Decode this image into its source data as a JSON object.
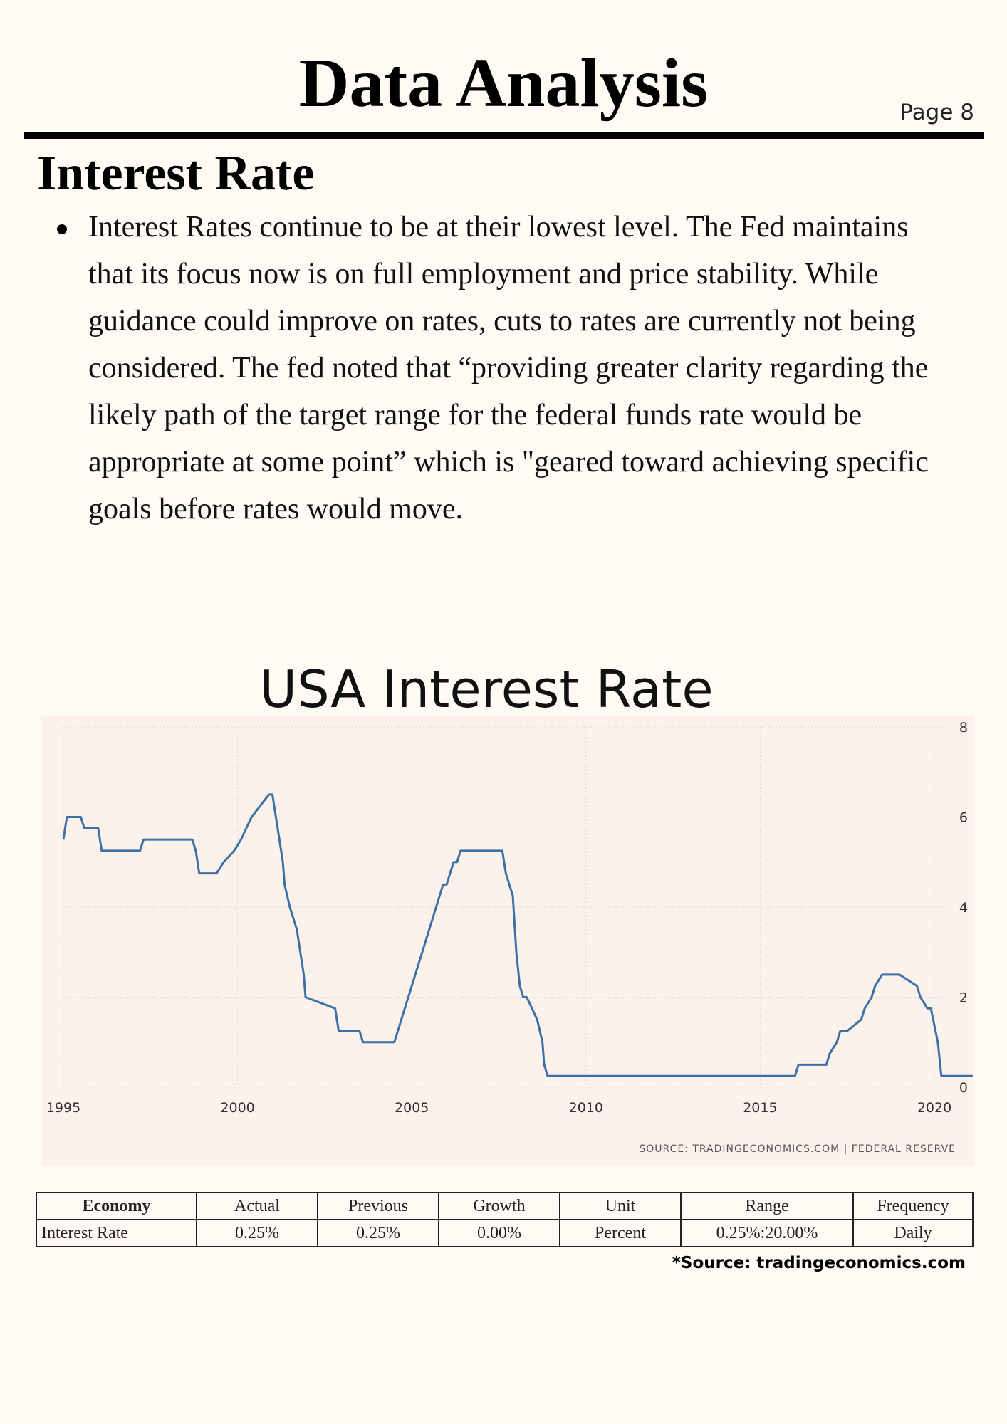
{
  "header": {
    "title": "Data Analysis",
    "page_label": "Page 8"
  },
  "section": {
    "title": "Interest Rate",
    "bullets": [
      "Interest Rates continue to be at their lowest level. The Fed maintains that its focus now is on full employment and price stability. While guidance could improve on rates, cuts to rates are currently not being considered. The fed noted that “providing greater clarity regarding the likely path of the target range for the federal funds rate would be appropriate at some point” which is \"geared toward achieving specific goals before rates would move."
    ]
  },
  "chart": {
    "heading": "USA Interest Rate",
    "source_note": "SOURCE: TRADINGECONOMICS.COM | FEDERAL RESERVE"
  },
  "chart_data": {
    "type": "line",
    "title": "USA Interest Rate",
    "xlabel": "",
    "ylabel": "",
    "x_ticks": [
      "1995",
      "2000",
      "2005",
      "2010",
      "2015",
      "2020"
    ],
    "y_ticks": [
      "0",
      "2",
      "4",
      "6",
      "8"
    ],
    "xlim": [
      1995,
      2021.1
    ],
    "ylim": [
      0,
      8
    ],
    "grid": true,
    "line_color": "#3c71a6",
    "series": [
      {
        "x": [
          1995.0,
          1995.1,
          1995.5,
          1995.6,
          1996.0,
          1996.1,
          1997.2,
          1997.3,
          1998.7,
          1998.8,
          1998.9,
          1999.4,
          1999.6,
          1999.9,
          2000.1,
          2000.4,
          2000.9,
          2001.0,
          2001.1,
          2001.2,
          2001.3,
          2001.35,
          2001.5,
          2001.6,
          2001.7,
          2001.8,
          2001.9,
          2001.95,
          2002.8,
          2002.9,
          2003.5,
          2003.6,
          2004.5,
          2004.6,
          2004.7,
          2004.8,
          2004.9,
          2005.0,
          2005.1,
          2005.2,
          2005.3,
          2005.4,
          2005.5,
          2005.6,
          2005.7,
          2005.8,
          2005.9,
          2006.0,
          2006.1,
          2006.2,
          2006.3,
          2006.4,
          2006.5,
          2007.6,
          2007.7,
          2007.8,
          2007.9,
          2008.0,
          2008.1,
          2008.2,
          2008.3,
          2008.6,
          2008.75,
          2008.8,
          2008.9,
          2016.0,
          2016.1,
          2016.9,
          2017.0,
          2017.2,
          2017.3,
          2017.5,
          2017.9,
          2018.0,
          2018.2,
          2018.3,
          2018.5,
          2018.7,
          2019.0,
          2019.5,
          2019.6,
          2019.8,
          2019.9,
          2020.1,
          2020.2,
          2021.1
        ],
        "values": [
          5.5,
          6.0,
          6.0,
          5.75,
          5.75,
          5.25,
          5.25,
          5.5,
          5.5,
          5.25,
          4.75,
          4.75,
          5.0,
          5.25,
          5.5,
          6.0,
          6.5,
          6.5,
          6.0,
          5.5,
          5.0,
          4.5,
          4.0,
          3.75,
          3.5,
          3.0,
          2.5,
          2.0,
          1.75,
          1.25,
          1.25,
          1.0,
          1.0,
          1.25,
          1.5,
          1.75,
          2.0,
          2.25,
          2.5,
          2.75,
          3.0,
          3.25,
          3.5,
          3.75,
          4.0,
          4.25,
          4.5,
          4.5,
          4.75,
          5.0,
          5.0,
          5.25,
          5.25,
          5.25,
          4.75,
          4.5,
          4.25,
          3.0,
          2.25,
          2.0,
          2.0,
          1.5,
          1.0,
          0.5,
          0.25,
          0.25,
          0.5,
          0.5,
          0.75,
          1.0,
          1.25,
          1.25,
          1.5,
          1.75,
          2.0,
          2.25,
          2.5,
          2.5,
          2.5,
          2.25,
          2.0,
          1.75,
          1.75,
          1.0,
          0.25,
          0.25
        ]
      }
    ]
  },
  "stats_table": {
    "headers": [
      "Economy",
      "Actual",
      "Previous",
      "Growth",
      "Unit",
      "Range",
      "Frequency"
    ],
    "rows": [
      [
        "Interest Rate",
        "0.25%",
        "0.25%",
        "0.00%",
        "Percent",
        "0.25%:20.00%",
        "Daily"
      ]
    ]
  },
  "footnote": "*Source: tradingeconomics.com"
}
